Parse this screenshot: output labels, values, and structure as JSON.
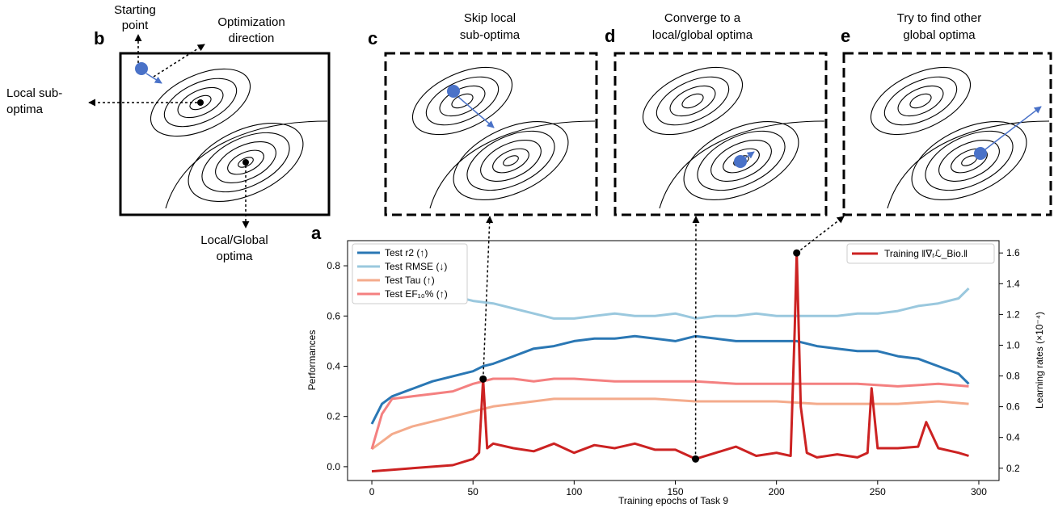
{
  "panels": {
    "a": "a",
    "b": "b",
    "c": "c",
    "d": "d",
    "e": "e"
  },
  "annotations": {
    "starting_point": [
      "Starting",
      "point"
    ],
    "optimization_direction": [
      "Optimization",
      "direction"
    ],
    "local_sub_optima": [
      "Local sub-",
      "optima"
    ],
    "local_global_optima": [
      "Local/Global",
      "optima"
    ],
    "c_title": [
      "Skip local",
      "sub-optima"
    ],
    "d_title": [
      "Converge to a",
      "local/global optima"
    ],
    "e_title": [
      "Try to find other",
      "global optima"
    ]
  },
  "colors": {
    "r2": "#2a77b4",
    "rmse": "#9ac8de",
    "tau": "#f4ab8c",
    "ef": "#f48080",
    "lr": "#cc2222",
    "marker": "#4a72c8"
  },
  "chart_data": {
    "type": "line",
    "xlabel": "Training epochs of Task 9",
    "ylabel": "Performances",
    "y2label": "Learning rates (×10⁻⁴)",
    "xlim": [
      -12,
      310
    ],
    "ylim": [
      -0.055,
      0.9
    ],
    "y2lim": [
      0.12,
      1.68
    ],
    "xticks": [
      0,
      50,
      100,
      150,
      200,
      250,
      300
    ],
    "yticks": [
      0.0,
      0.2,
      0.4,
      0.6,
      0.8
    ],
    "yticklabels": [
      "0.0",
      "0.2",
      "0.4",
      "0.6",
      "0.8"
    ],
    "y2ticks": [
      0.2,
      0.4,
      0.6,
      0.8,
      1.0,
      1.2,
      1.4,
      1.6
    ],
    "y2ticklabels": [
      "0.2",
      "0.4",
      "0.6",
      "0.8",
      "1.0",
      "1.2",
      "1.4",
      "1.6"
    ],
    "legend_left": [
      "Test r2 (↑)",
      "Test RMSE (↓)",
      "Test Tau (↑)",
      "Test EF₁₀% (↑)"
    ],
    "legend_right": "Training ‖∇ᵣℒ_Bio.‖",
    "legend_left_placement": "upper-left",
    "legend_right_placement": "upper-right",
    "series": [
      {
        "name": "Test r2 (↑)",
        "axis": "left",
        "color": "#2a77b4",
        "x": [
          0,
          5,
          10,
          20,
          30,
          40,
          50,
          55,
          60,
          70,
          80,
          90,
          100,
          110,
          120,
          130,
          140,
          150,
          160,
          170,
          180,
          190,
          200,
          210,
          220,
          230,
          240,
          250,
          260,
          270,
          280,
          290,
          295
        ],
        "y": [
          0.17,
          0.25,
          0.28,
          0.31,
          0.34,
          0.36,
          0.38,
          0.4,
          0.41,
          0.44,
          0.47,
          0.48,
          0.5,
          0.51,
          0.51,
          0.52,
          0.51,
          0.5,
          0.52,
          0.51,
          0.5,
          0.5,
          0.5,
          0.5,
          0.48,
          0.47,
          0.46,
          0.46,
          0.44,
          0.43,
          0.4,
          0.37,
          0.33
        ]
      },
      {
        "name": "Test RMSE (↓)",
        "axis": "left",
        "color": "#9ac8de",
        "x": [
          40,
          50,
          60,
          70,
          80,
          90,
          100,
          110,
          120,
          130,
          140,
          150,
          160,
          170,
          180,
          190,
          200,
          210,
          220,
          230,
          240,
          250,
          260,
          270,
          280,
          290,
          295
        ],
        "y": [
          0.68,
          0.66,
          0.65,
          0.63,
          0.61,
          0.59,
          0.59,
          0.6,
          0.61,
          0.6,
          0.6,
          0.61,
          0.59,
          0.6,
          0.6,
          0.61,
          0.6,
          0.6,
          0.6,
          0.6,
          0.61,
          0.61,
          0.62,
          0.64,
          0.65,
          0.67,
          0.71
        ]
      },
      {
        "name": "Test Tau (↑)",
        "axis": "left",
        "color": "#f4ab8c",
        "x": [
          0,
          5,
          10,
          20,
          30,
          40,
          50,
          60,
          70,
          80,
          90,
          100,
          120,
          140,
          160,
          180,
          200,
          220,
          240,
          260,
          280,
          295
        ],
        "y": [
          0.07,
          0.1,
          0.13,
          0.16,
          0.18,
          0.2,
          0.22,
          0.24,
          0.25,
          0.26,
          0.27,
          0.27,
          0.27,
          0.27,
          0.26,
          0.26,
          0.26,
          0.25,
          0.25,
          0.25,
          0.26,
          0.25
        ]
      },
      {
        "name": "Test EF₁₀% (↑)",
        "axis": "left",
        "color": "#f48080",
        "x": [
          0,
          5,
          10,
          20,
          30,
          40,
          50,
          60,
          70,
          80,
          90,
          100,
          120,
          140,
          160,
          180,
          200,
          220,
          240,
          260,
          280,
          295
        ],
        "y": [
          0.07,
          0.21,
          0.27,
          0.28,
          0.29,
          0.3,
          0.33,
          0.35,
          0.35,
          0.34,
          0.35,
          0.35,
          0.34,
          0.34,
          0.34,
          0.33,
          0.33,
          0.33,
          0.33,
          0.32,
          0.33,
          0.32
        ]
      },
      {
        "name": "Training ‖∇ᵣℒ_Bio.‖",
        "axis": "right",
        "color": "#cc2222",
        "x": [
          0,
          10,
          20,
          30,
          40,
          50,
          53,
          55,
          57,
          60,
          70,
          80,
          90,
          100,
          110,
          120,
          130,
          140,
          150,
          160,
          170,
          180,
          190,
          200,
          207,
          209,
          210,
          212,
          215,
          220,
          230,
          240,
          245,
          247,
          250,
          260,
          270,
          274,
          280,
          290,
          295
        ],
        "y": [
          0.18,
          0.19,
          0.2,
          0.21,
          0.22,
          0.26,
          0.3,
          0.78,
          0.33,
          0.36,
          0.33,
          0.31,
          0.36,
          0.3,
          0.35,
          0.33,
          0.36,
          0.32,
          0.32,
          0.26,
          0.3,
          0.34,
          0.28,
          0.3,
          0.28,
          1.1,
          1.6,
          0.6,
          0.3,
          0.27,
          0.29,
          0.27,
          0.3,
          0.72,
          0.33,
          0.33,
          0.34,
          0.5,
          0.33,
          0.3,
          0.28
        ]
      }
    ],
    "markers": [
      {
        "x": 55,
        "y": 0.78,
        "axis": "right"
      },
      {
        "x": 160,
        "y": 0.26,
        "axis": "right"
      },
      {
        "x": 210,
        "y": 1.6,
        "axis": "right"
      }
    ]
  }
}
